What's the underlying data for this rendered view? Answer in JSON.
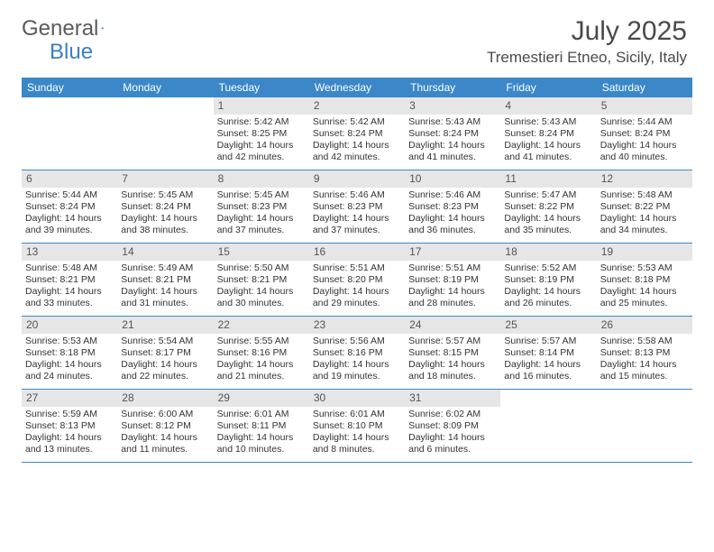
{
  "brand": {
    "text_general": "General",
    "text_blue": "Blue",
    "logo_color": "#3b87c8"
  },
  "header": {
    "month_title": "July 2025",
    "location": "Tremestieri Etneo, Sicily, Italy"
  },
  "colors": {
    "header_bg": "#3b87c8",
    "header_text": "#ffffff",
    "daynum_bg": "#e6e6e6",
    "daynum_text": "#555555",
    "border": "#3b87c8",
    "body_text": "#333333"
  },
  "day_names": [
    "Sunday",
    "Monday",
    "Tuesday",
    "Wednesday",
    "Thursday",
    "Friday",
    "Saturday"
  ],
  "weeks": [
    [
      {
        "empty": true
      },
      {
        "empty": true
      },
      {
        "num": "1",
        "sunrise": "5:42 AM",
        "sunset": "8:25 PM",
        "daylight": "14 hours and 42 minutes."
      },
      {
        "num": "2",
        "sunrise": "5:42 AM",
        "sunset": "8:24 PM",
        "daylight": "14 hours and 42 minutes."
      },
      {
        "num": "3",
        "sunrise": "5:43 AM",
        "sunset": "8:24 PM",
        "daylight": "14 hours and 41 minutes."
      },
      {
        "num": "4",
        "sunrise": "5:43 AM",
        "sunset": "8:24 PM",
        "daylight": "14 hours and 41 minutes."
      },
      {
        "num": "5",
        "sunrise": "5:44 AM",
        "sunset": "8:24 PM",
        "daylight": "14 hours and 40 minutes."
      }
    ],
    [
      {
        "num": "6",
        "sunrise": "5:44 AM",
        "sunset": "8:24 PM",
        "daylight": "14 hours and 39 minutes."
      },
      {
        "num": "7",
        "sunrise": "5:45 AM",
        "sunset": "8:24 PM",
        "daylight": "14 hours and 38 minutes."
      },
      {
        "num": "8",
        "sunrise": "5:45 AM",
        "sunset": "8:23 PM",
        "daylight": "14 hours and 37 minutes."
      },
      {
        "num": "9",
        "sunrise": "5:46 AM",
        "sunset": "8:23 PM",
        "daylight": "14 hours and 37 minutes."
      },
      {
        "num": "10",
        "sunrise": "5:46 AM",
        "sunset": "8:23 PM",
        "daylight": "14 hours and 36 minutes."
      },
      {
        "num": "11",
        "sunrise": "5:47 AM",
        "sunset": "8:22 PM",
        "daylight": "14 hours and 35 minutes."
      },
      {
        "num": "12",
        "sunrise": "5:48 AM",
        "sunset": "8:22 PM",
        "daylight": "14 hours and 34 minutes."
      }
    ],
    [
      {
        "num": "13",
        "sunrise": "5:48 AM",
        "sunset": "8:21 PM",
        "daylight": "14 hours and 33 minutes."
      },
      {
        "num": "14",
        "sunrise": "5:49 AM",
        "sunset": "8:21 PM",
        "daylight": "14 hours and 31 minutes."
      },
      {
        "num": "15",
        "sunrise": "5:50 AM",
        "sunset": "8:21 PM",
        "daylight": "14 hours and 30 minutes."
      },
      {
        "num": "16",
        "sunrise": "5:51 AM",
        "sunset": "8:20 PM",
        "daylight": "14 hours and 29 minutes."
      },
      {
        "num": "17",
        "sunrise": "5:51 AM",
        "sunset": "8:19 PM",
        "daylight": "14 hours and 28 minutes."
      },
      {
        "num": "18",
        "sunrise": "5:52 AM",
        "sunset": "8:19 PM",
        "daylight": "14 hours and 26 minutes."
      },
      {
        "num": "19",
        "sunrise": "5:53 AM",
        "sunset": "8:18 PM",
        "daylight": "14 hours and 25 minutes."
      }
    ],
    [
      {
        "num": "20",
        "sunrise": "5:53 AM",
        "sunset": "8:18 PM",
        "daylight": "14 hours and 24 minutes."
      },
      {
        "num": "21",
        "sunrise": "5:54 AM",
        "sunset": "8:17 PM",
        "daylight": "14 hours and 22 minutes."
      },
      {
        "num": "22",
        "sunrise": "5:55 AM",
        "sunset": "8:16 PM",
        "daylight": "14 hours and 21 minutes."
      },
      {
        "num": "23",
        "sunrise": "5:56 AM",
        "sunset": "8:16 PM",
        "daylight": "14 hours and 19 minutes."
      },
      {
        "num": "24",
        "sunrise": "5:57 AM",
        "sunset": "8:15 PM",
        "daylight": "14 hours and 18 minutes."
      },
      {
        "num": "25",
        "sunrise": "5:57 AM",
        "sunset": "8:14 PM",
        "daylight": "14 hours and 16 minutes."
      },
      {
        "num": "26",
        "sunrise": "5:58 AM",
        "sunset": "8:13 PM",
        "daylight": "14 hours and 15 minutes."
      }
    ],
    [
      {
        "num": "27",
        "sunrise": "5:59 AM",
        "sunset": "8:13 PM",
        "daylight": "14 hours and 13 minutes."
      },
      {
        "num": "28",
        "sunrise": "6:00 AM",
        "sunset": "8:12 PM",
        "daylight": "14 hours and 11 minutes."
      },
      {
        "num": "29",
        "sunrise": "6:01 AM",
        "sunset": "8:11 PM",
        "daylight": "14 hours and 10 minutes."
      },
      {
        "num": "30",
        "sunrise": "6:01 AM",
        "sunset": "8:10 PM",
        "daylight": "14 hours and 8 minutes."
      },
      {
        "num": "31",
        "sunrise": "6:02 AM",
        "sunset": "8:09 PM",
        "daylight": "14 hours and 6 minutes."
      },
      {
        "empty": true
      },
      {
        "empty": true
      }
    ]
  ],
  "labels": {
    "sunrise_prefix": "Sunrise: ",
    "sunset_prefix": "Sunset: ",
    "daylight_prefix": "Daylight: "
  }
}
